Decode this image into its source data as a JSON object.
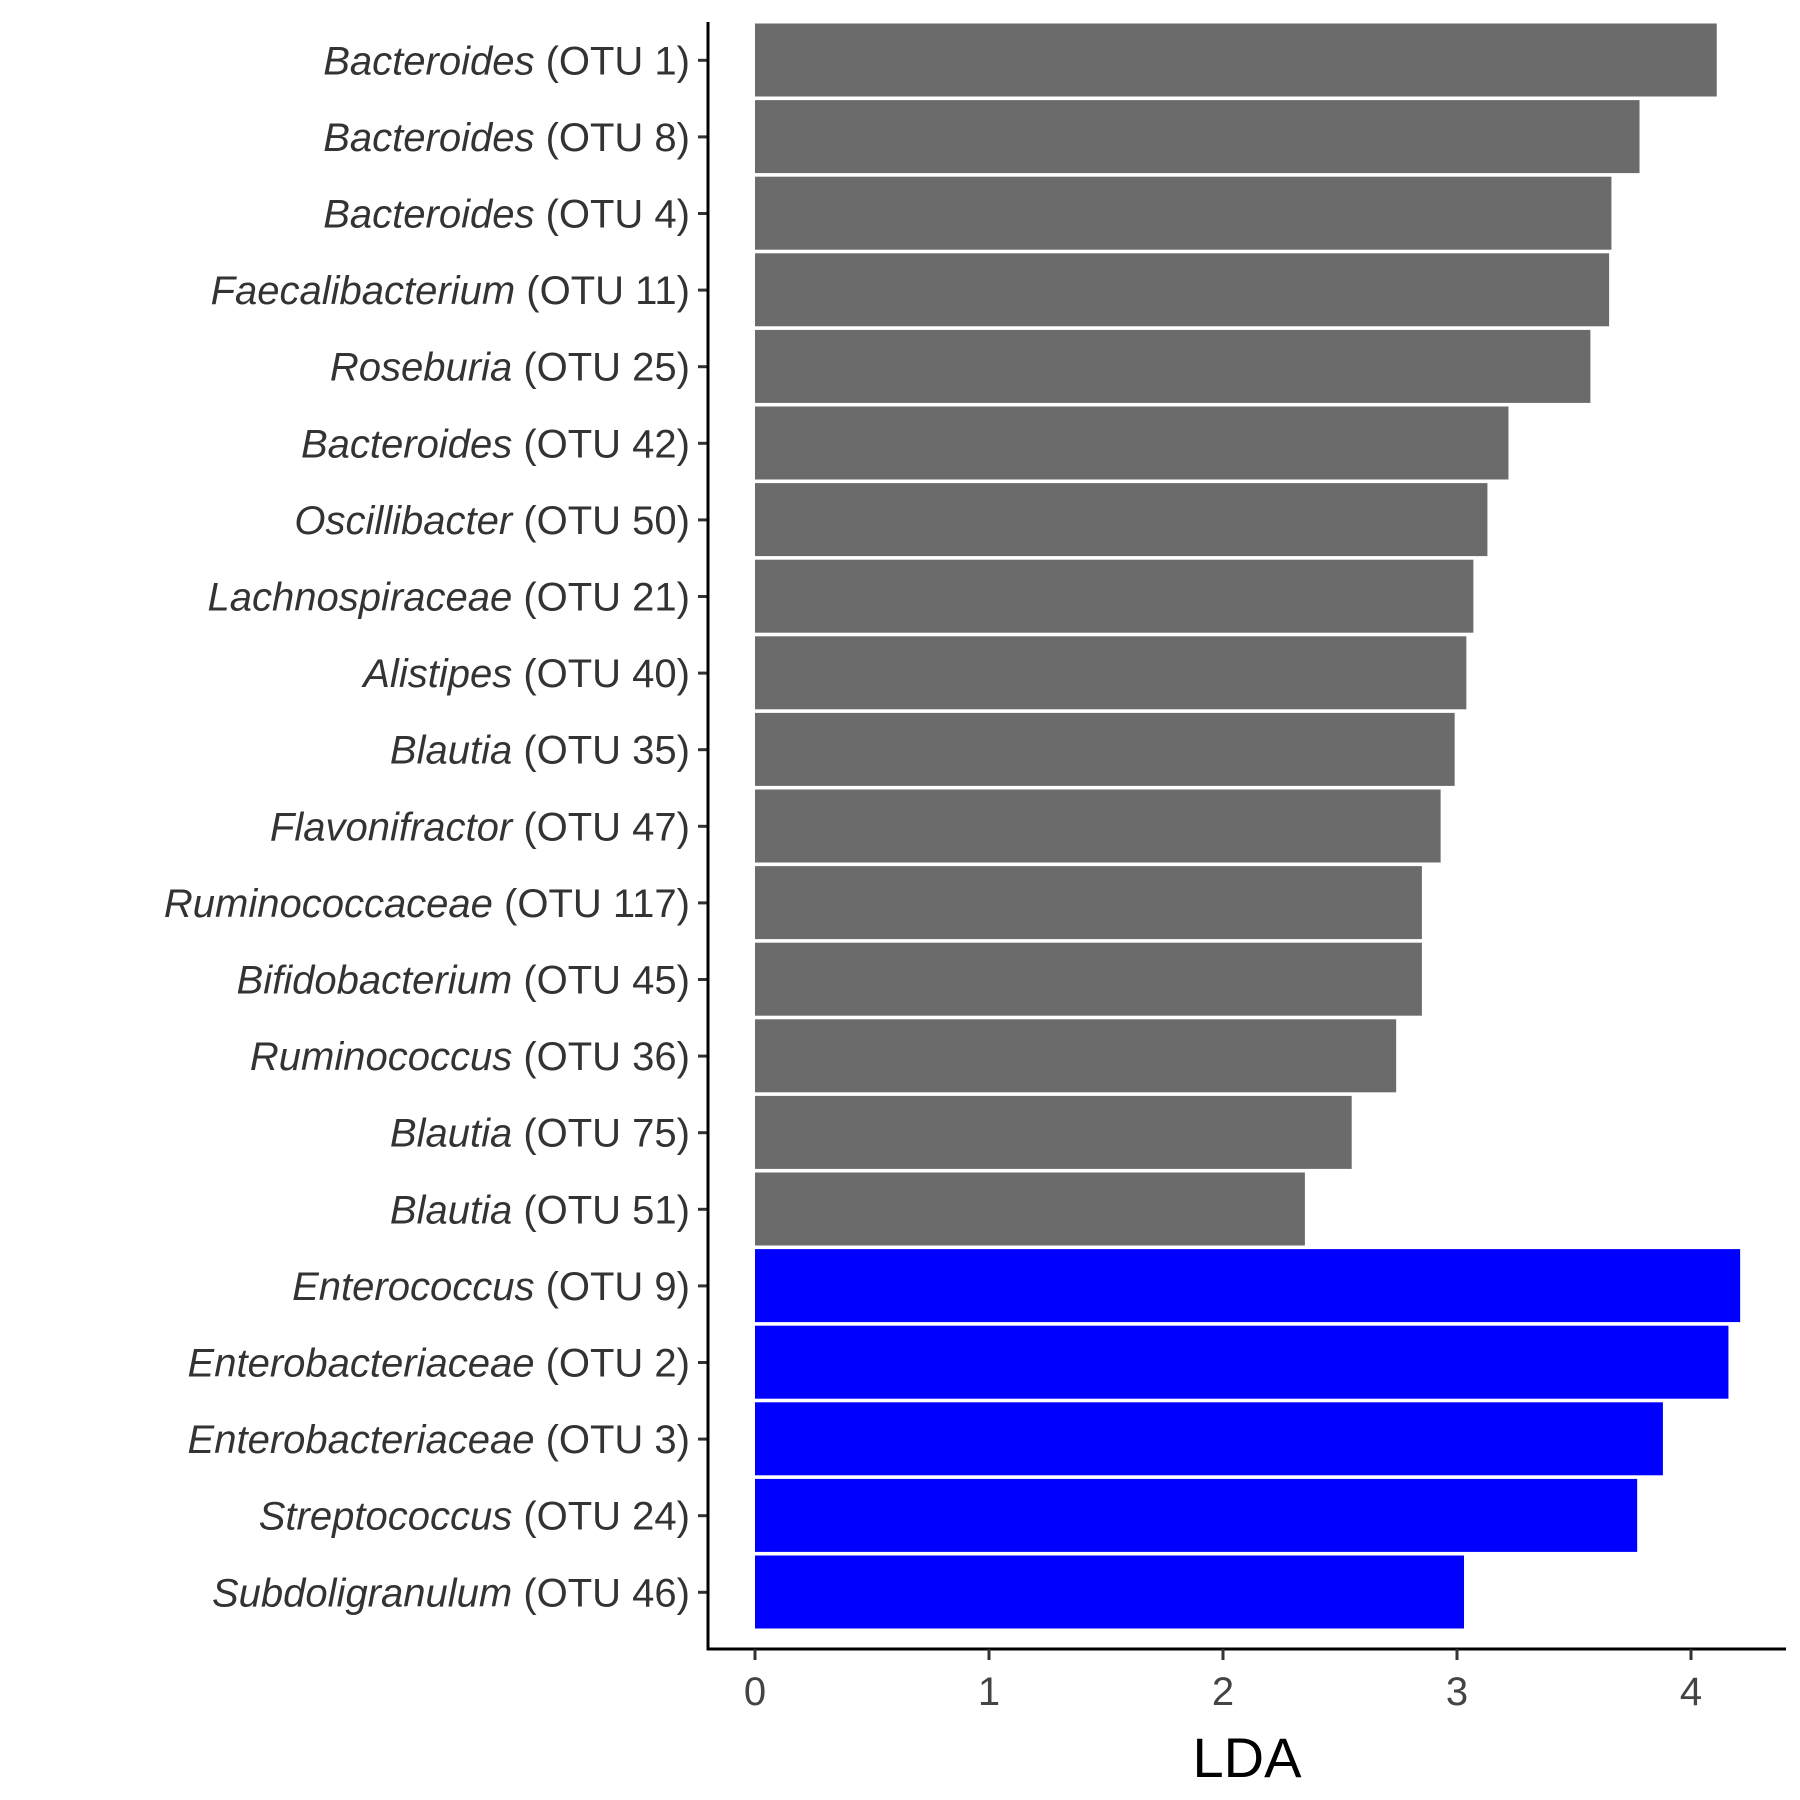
{
  "chart_data": {
    "type": "bar",
    "orientation": "horizontal",
    "xlabel": "LDA",
    "ylabel": "",
    "xlim": [
      0,
      4.3
    ],
    "x_ticks": [
      "0",
      "1",
      "2",
      "3",
      "4"
    ],
    "grid": false,
    "legend": "none",
    "colors": {
      "group_a": "#6B6B6B",
      "group_b": "#0000FF"
    },
    "bars": [
      {
        "genus": "Bacteroides",
        "otu": "(OTU 1)",
        "value": 4.11,
        "group": "group_a"
      },
      {
        "genus": "Bacteroides",
        "otu": "(OTU 8)",
        "value": 3.78,
        "group": "group_a"
      },
      {
        "genus": "Bacteroides",
        "otu": "(OTU 4)",
        "value": 3.66,
        "group": "group_a"
      },
      {
        "genus": "Faecalibacterium",
        "otu": "(OTU 11)",
        "value": 3.65,
        "group": "group_a"
      },
      {
        "genus": "Roseburia",
        "otu": "(OTU 25)",
        "value": 3.57,
        "group": "group_a"
      },
      {
        "genus": "Bacteroides",
        "otu": "(OTU 42)",
        "value": 3.22,
        "group": "group_a"
      },
      {
        "genus": "Oscillibacter",
        "otu": "(OTU 50)",
        "value": 3.13,
        "group": "group_a"
      },
      {
        "genus": "Lachnospiraceae",
        "otu": "(OTU 21)",
        "value": 3.07,
        "group": "group_a"
      },
      {
        "genus": "Alistipes",
        "otu": "(OTU 40)",
        "value": 3.04,
        "group": "group_a"
      },
      {
        "genus": "Blautia",
        "otu": "(OTU 35)",
        "value": 2.99,
        "group": "group_a"
      },
      {
        "genus": "Flavonifractor",
        "otu": "(OTU 47)",
        "value": 2.93,
        "group": "group_a"
      },
      {
        "genus": "Ruminococcaceae",
        "otu": "(OTU 117)",
        "value": 2.85,
        "group": "group_a"
      },
      {
        "genus": "Bifidobacterium",
        "otu": "(OTU 45)",
        "value": 2.85,
        "group": "group_a"
      },
      {
        "genus": "Ruminococcus",
        "otu": "(OTU 36)",
        "value": 2.74,
        "group": "group_a"
      },
      {
        "genus": "Blautia",
        "otu": "(OTU 75)",
        "value": 2.55,
        "group": "group_a"
      },
      {
        "genus": "Blautia",
        "otu": "(OTU 51)",
        "value": 2.35,
        "group": "group_a"
      },
      {
        "genus": "Enterococcus",
        "otu": "(OTU 9)",
        "value": 4.21,
        "group": "group_b"
      },
      {
        "genus": "Enterobacteriaceae",
        "otu": "(OTU 2)",
        "value": 4.16,
        "group": "group_b"
      },
      {
        "genus": "Enterobacteriaceae",
        "otu": "(OTU 3)",
        "value": 3.88,
        "group": "group_b"
      },
      {
        "genus": "Streptococcus",
        "otu": "(OTU 24)",
        "value": 3.77,
        "group": "group_b"
      },
      {
        "genus": "Subdoligranulum",
        "otu": "(OTU 46)",
        "value": 3.03,
        "group": "group_b"
      }
    ]
  }
}
